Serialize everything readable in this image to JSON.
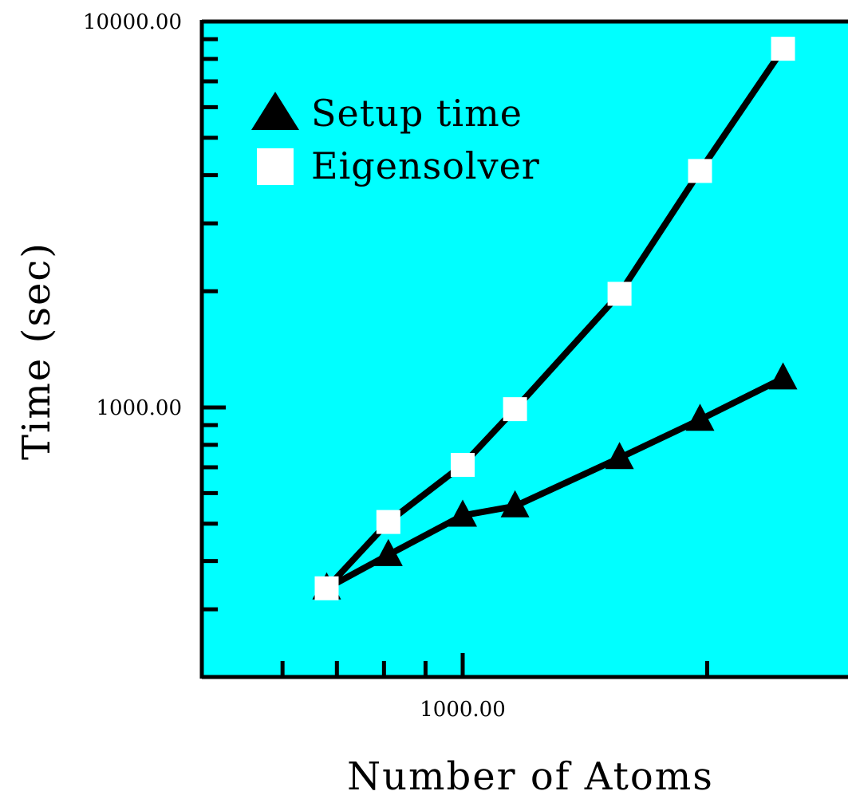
{
  "chart_data": {
    "type": "line",
    "xlabel": "Number of Atoms",
    "ylabel": "Time (sec)",
    "x_scale": "log",
    "y_scale": "log",
    "xlim": [
      500,
      2300
    ],
    "ylim": [
      200,
      10000
    ],
    "x_tick_labels": [
      {
        "value": 1000,
        "label": "1000.00"
      }
    ],
    "y_tick_labels": [
      {
        "value": 1000,
        "label": "1000.00"
      },
      {
        "value": 10000,
        "label": "10000.00"
      }
    ],
    "x_minor_ticks": [
      600,
      700,
      800,
      900,
      1000,
      2000
    ],
    "y_minor_ticks": [
      300,
      400,
      500,
      600,
      700,
      800,
      900,
      1000,
      2000,
      3000,
      4000,
      5000,
      6000,
      7000,
      8000,
      9000,
      10000
    ],
    "legend_position": "top-left",
    "background_color": "#00ffff",
    "series": [
      {
        "name": "Setup time",
        "marker": "triangle",
        "marker_color": "#000000",
        "line_color": "#000000",
        "points": [
          [
            680,
            340
          ],
          [
            810,
            415
          ],
          [
            1000,
            525
          ],
          [
            1160,
            555
          ],
          [
            1560,
            740
          ],
          [
            1960,
            930
          ],
          [
            2480,
            1190
          ]
        ]
      },
      {
        "name": "Eigensolver",
        "marker": "square",
        "marker_color": "#ffffff",
        "line_color": "#000000",
        "points": [
          [
            680,
            340
          ],
          [
            810,
            505
          ],
          [
            1000,
            710
          ],
          [
            1160,
            990
          ],
          [
            1560,
            1970
          ],
          [
            1960,
            4100
          ],
          [
            2480,
            8500
          ]
        ]
      }
    ]
  }
}
